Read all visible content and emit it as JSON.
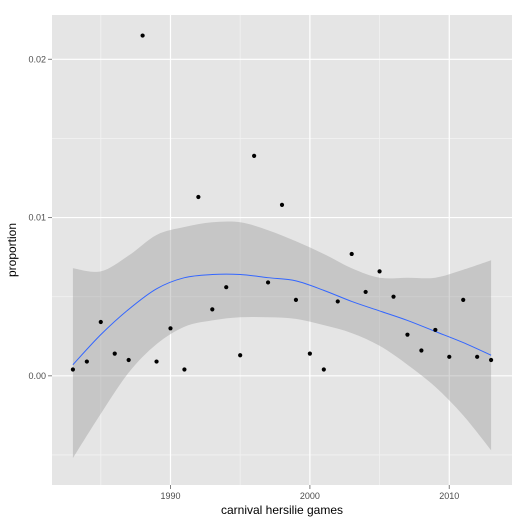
{
  "chart_data": {
    "type": "scatter",
    "title": "",
    "xlabel": "carnival hersilie games",
    "ylabel": "proportion",
    "xlim": [
      1981.5,
      2014.5
    ],
    "ylim": [
      -0.0069,
      0.0228
    ],
    "x_ticks": [
      1990,
      2000,
      2010
    ],
    "x_tick_labels": [
      "1990",
      "2000",
      "2010"
    ],
    "y_ticks": [
      0.0,
      0.01,
      0.02
    ],
    "y_tick_labels": [
      "0.00",
      "0.01",
      "0.02"
    ],
    "grid": true,
    "legend": "none",
    "colors": {
      "panel": "#e5e5e5",
      "grid_major": "#ffffff",
      "points": "#000000",
      "smooth_line": "#3366ff",
      "ribbon": "#999999"
    },
    "points": [
      {
        "x": 1983,
        "y": 0.0004
      },
      {
        "x": 1984,
        "y": 0.0009
      },
      {
        "x": 1985,
        "y": 0.0034
      },
      {
        "x": 1986,
        "y": 0.0014
      },
      {
        "x": 1987,
        "y": 0.001
      },
      {
        "x": 1988,
        "y": 0.0215
      },
      {
        "x": 1989,
        "y": 0.0009
      },
      {
        "x": 1990,
        "y": 0.003
      },
      {
        "x": 1991,
        "y": 0.0004
      },
      {
        "x": 1992,
        "y": 0.0113
      },
      {
        "x": 1993,
        "y": 0.0042
      },
      {
        "x": 1994,
        "y": 0.0056
      },
      {
        "x": 1995,
        "y": 0.0013
      },
      {
        "x": 1996,
        "y": 0.0139
      },
      {
        "x": 1997,
        "y": 0.0059
      },
      {
        "x": 1998,
        "y": 0.0108
      },
      {
        "x": 1999,
        "y": 0.0048
      },
      {
        "x": 2000,
        "y": 0.0014
      },
      {
        "x": 2001,
        "y": 0.0004
      },
      {
        "x": 2002,
        "y": 0.0047
      },
      {
        "x": 2003,
        "y": 0.0077
      },
      {
        "x": 2004,
        "y": 0.0053
      },
      {
        "x": 2005,
        "y": 0.0066
      },
      {
        "x": 2006,
        "y": 0.005
      },
      {
        "x": 2007,
        "y": 0.0026
      },
      {
        "x": 2008,
        "y": 0.0016
      },
      {
        "x": 2009,
        "y": 0.0029
      },
      {
        "x": 2010,
        "y": 0.0012
      },
      {
        "x": 2011,
        "y": 0.0048
      },
      {
        "x": 2012,
        "y": 0.0012
      },
      {
        "x": 2013,
        "y": 0.001
      }
    ],
    "smooth": {
      "x": [
        1983,
        1985,
        1987,
        1989,
        1991,
        1993,
        1995,
        1997,
        1999,
        2001,
        2003,
        2005,
        2007,
        2009,
        2011,
        2013
      ],
      "y": [
        0.0007,
        0.0026,
        0.0042,
        0.0055,
        0.0062,
        0.0064,
        0.0064,
        0.0062,
        0.006,
        0.0054,
        0.0047,
        0.0041,
        0.0035,
        0.0028,
        0.0021,
        0.0013
      ],
      "lower": [
        -0.0052,
        -0.0024,
        0.0002,
        0.002,
        0.0031,
        0.0035,
        0.0037,
        0.0037,
        0.0036,
        0.0032,
        0.0027,
        0.0019,
        0.0007,
        -0.0007,
        -0.0025,
        -0.0047
      ],
      "upper": [
        0.0068,
        0.0066,
        0.0076,
        0.0089,
        0.0094,
        0.0097,
        0.0097,
        0.0092,
        0.0085,
        0.0077,
        0.0068,
        0.0062,
        0.0062,
        0.0062,
        0.0067,
        0.0073
      ]
    }
  }
}
